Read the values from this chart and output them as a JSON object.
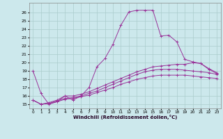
{
  "xlabel": "Windchill (Refroidissement éolien,°C)",
  "background_color": "#cce8ec",
  "grid_color": "#aacccc",
  "line_color": "#993399",
  "xlim": [
    -0.5,
    23.5
  ],
  "ylim": [
    14.5,
    27.2
  ],
  "yticks": [
    15,
    16,
    17,
    18,
    19,
    20,
    21,
    22,
    23,
    24,
    25,
    26
  ],
  "xticks": [
    0,
    1,
    2,
    3,
    4,
    5,
    6,
    7,
    8,
    9,
    10,
    11,
    12,
    13,
    14,
    15,
    16,
    17,
    18,
    19,
    20,
    21,
    22,
    23
  ],
  "series": [
    {
      "x": [
        0,
        1,
        2,
        3,
        4,
        5,
        6,
        7,
        8,
        9,
        10,
        11,
        12,
        13,
        14,
        15,
        16,
        17,
        18,
        19,
        20,
        21,
        22,
        23
      ],
      "y": [
        19.0,
        16.3,
        15.0,
        15.3,
        16.0,
        15.5,
        16.0,
        17.0,
        19.5,
        20.5,
        22.2,
        24.5,
        26.1,
        26.3,
        26.3,
        26.3,
        23.2,
        23.3,
        22.5,
        20.4,
        20.1,
        19.9,
        19.2,
        18.7
      ]
    },
    {
      "x": [
        0,
        1,
        2,
        3,
        4,
        5,
        6,
        7,
        8,
        9,
        10,
        11,
        12,
        13,
        14,
        15,
        16,
        17,
        18,
        19,
        20,
        21,
        22,
        23
      ],
      "y": [
        15.5,
        15.0,
        15.2,
        15.5,
        16.0,
        16.0,
        16.2,
        16.5,
        16.9,
        17.3,
        17.7,
        18.1,
        18.5,
        18.9,
        19.2,
        19.5,
        19.6,
        19.7,
        19.8,
        19.8,
        20.0,
        19.9,
        19.3,
        18.8
      ]
    },
    {
      "x": [
        0,
        1,
        2,
        3,
        4,
        5,
        6,
        7,
        8,
        9,
        10,
        11,
        12,
        13,
        14,
        15,
        16,
        17,
        18,
        19,
        20,
        21,
        22,
        23
      ],
      "y": [
        15.5,
        15.0,
        15.1,
        15.4,
        15.7,
        15.8,
        16.0,
        16.3,
        16.6,
        17.0,
        17.4,
        17.8,
        18.2,
        18.6,
        18.9,
        19.1,
        19.2,
        19.2,
        19.2,
        19.1,
        19.0,
        18.9,
        18.8,
        18.6
      ]
    },
    {
      "x": [
        0,
        1,
        2,
        3,
        4,
        5,
        6,
        7,
        8,
        9,
        10,
        11,
        12,
        13,
        14,
        15,
        16,
        17,
        18,
        19,
        20,
        21,
        22,
        23
      ],
      "y": [
        15.5,
        15.0,
        15.1,
        15.3,
        15.6,
        15.7,
        15.9,
        16.1,
        16.4,
        16.7,
        17.0,
        17.4,
        17.7,
        18.0,
        18.2,
        18.4,
        18.5,
        18.5,
        18.5,
        18.5,
        18.4,
        18.3,
        18.2,
        18.1
      ]
    }
  ]
}
